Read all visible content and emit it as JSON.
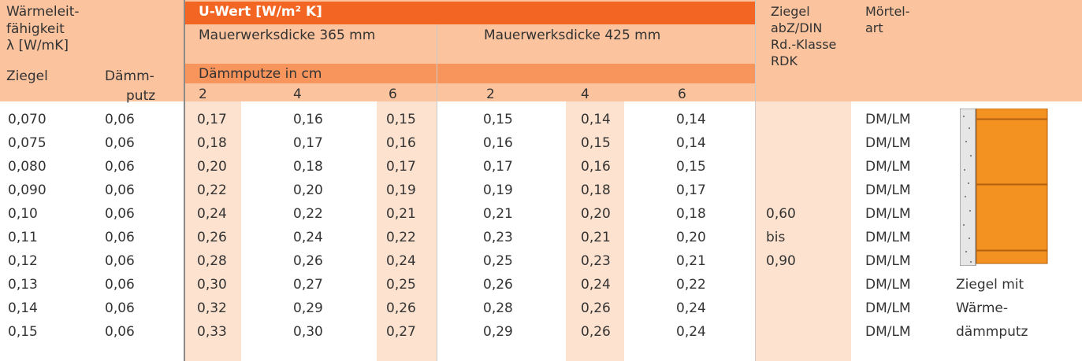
{
  "header": {
    "lambda_lines": [
      "Wärmeleit-",
      "fähigkeit",
      "λ [W/mK]"
    ],
    "ziegel": "Ziegel",
    "daemmputz_lines": [
      "Dämm-",
      "putz"
    ],
    "u_wert": "U-Wert [W/m² K]",
    "thickness_365": "Mauerwerksdicke 365 mm",
    "thickness_425": "Mauerwerksdicke 425 mm",
    "daemmputze": "Dämmputze in cm",
    "sub_columns": [
      "2",
      "4",
      "6",
      "2",
      "4",
      "6"
    ],
    "rdk_lines": [
      "Ziegel",
      "abZ/DIN",
      "Rd.-Klasse",
      "RDK"
    ],
    "moertel_lines": [
      "Mörtel-",
      "art"
    ]
  },
  "table": {
    "rows": [
      [
        "0,070",
        "0,06",
        "0,17",
        "0,16",
        "0,15",
        "0,15",
        "0,14",
        "0,14",
        "DM/LM"
      ],
      [
        "0,075",
        "0,06",
        "0,18",
        "0,17",
        "0,16",
        "0,16",
        "0,15",
        "0,14",
        "DM/LM"
      ],
      [
        "0,080",
        "0,06",
        "0,20",
        "0,18",
        "0,17",
        "0,17",
        "0,16",
        "0,15",
        "DM/LM"
      ],
      [
        "0,090",
        "0,06",
        "0,22",
        "0,20",
        "0,19",
        "0,19",
        "0,18",
        "0,17",
        "DM/LM"
      ],
      [
        "0,10",
        "0,06",
        "0,24",
        "0,22",
        "0,21",
        "0,21",
        "0,20",
        "0,18",
        "DM/LM"
      ],
      [
        "0,11",
        "0,06",
        "0,26",
        "0,24",
        "0,22",
        "0,23",
        "0,21",
        "0,20",
        "DM/LM"
      ],
      [
        "0,12",
        "0,06",
        "0,28",
        "0,26",
        "0,24",
        "0,25",
        "0,23",
        "0,21",
        "DM/LM"
      ],
      [
        "0,13",
        "0,06",
        "0,30",
        "0,27",
        "0,25",
        "0,26",
        "0,24",
        "0,22",
        "DM/LM"
      ],
      [
        "0,14",
        "0,06",
        "0,32",
        "0,29",
        "0,26",
        "0,28",
        "0,26",
        "0,24",
        "DM/LM"
      ],
      [
        "0,15",
        "0,06",
        "0,33",
        "0,30",
        "0,27",
        "0,29",
        "0,26",
        "0,24",
        "DM/LM"
      ]
    ],
    "rdk": [
      "0,60",
      "bis",
      "0,90"
    ],
    "caption": [
      "Ziegel mit",
      "Wärme-",
      "dämmputz"
    ]
  }
}
